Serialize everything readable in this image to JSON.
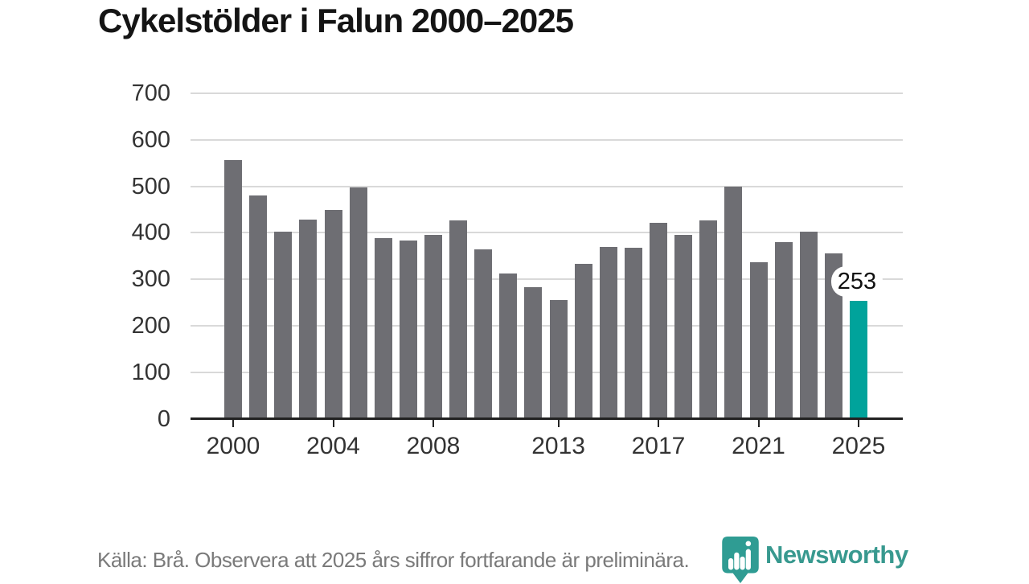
{
  "title": "Cykelstölder i Falun 2000–2025",
  "footer": {
    "source_text": "Källa: Brå. Observera att 2025 års siffror fortfarande är preliminära."
  },
  "branding": {
    "logo_text": "Newsworthy",
    "logo_icon": "newsworthy-pin-bar-chart-icon",
    "brand_color": "#38998f"
  },
  "colors": {
    "bar": "#6e6e73",
    "highlight": "#00a39b",
    "gridline": "#d9d9d9",
    "axis": "#222222",
    "axis_label": "#333333",
    "title": "#141414",
    "footer_text": "#7a7a7a"
  },
  "chart_data": {
    "type": "bar",
    "title": "Cykelstölder i Falun 2000–2025",
    "categories": [
      2000,
      2001,
      2002,
      2003,
      2004,
      2005,
      2006,
      2007,
      2008,
      2009,
      2010,
      2011,
      2012,
      2013,
      2014,
      2015,
      2016,
      2017,
      2018,
      2019,
      2020,
      2021,
      2022,
      2023,
      2024,
      2025
    ],
    "values": [
      556,
      481,
      402,
      429,
      449,
      498,
      388,
      384,
      396,
      427,
      365,
      313,
      283,
      255,
      333,
      369,
      368,
      422,
      395,
      426,
      499,
      337,
      380,
      402,
      356,
      253
    ],
    "highlight_index": 25,
    "highlight_label": "253",
    "bar_color": "#6e6e73",
    "highlight_color": "#00a39b",
    "ylim": [
      0,
      700
    ],
    "yticks": [
      0,
      100,
      200,
      300,
      400,
      500,
      600,
      700
    ],
    "xticks": [
      2000,
      2004,
      2008,
      2013,
      2017,
      2021,
      2025
    ],
    "grid": "horizontal",
    "legend": "none",
    "note": "2025 highlighted as preliminary"
  }
}
